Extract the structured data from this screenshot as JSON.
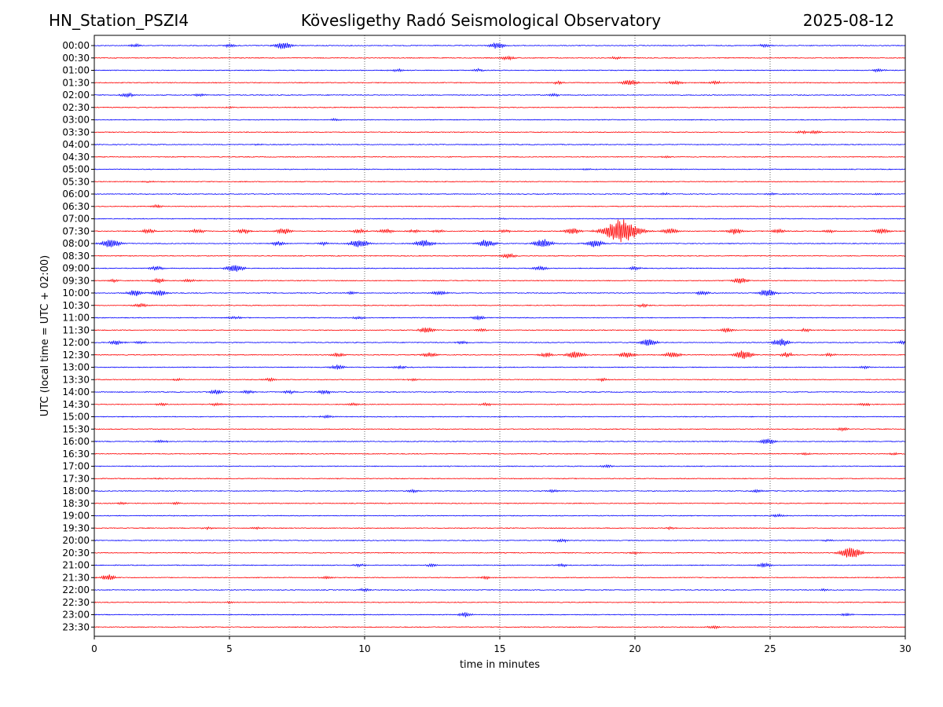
{
  "header": {
    "station": "HN_Station_PSZI4",
    "observatory": "Kövesligethy Radó Seismological Observatory",
    "date": "2025-08-12"
  },
  "chart_data": {
    "type": "line",
    "title": "Kövesligethy Radó Seismological Observatory",
    "xlabel": "time in minutes",
    "ylabel": "UTC (local time = UTC + 02:00)",
    "xlim": [
      0,
      30
    ],
    "x_ticks": [
      "0",
      "5",
      "10",
      "15",
      "20",
      "25",
      "30"
    ],
    "vertical_grid_minutes": [
      5,
      10,
      15,
      20,
      25
    ],
    "grid": "vertical-dotted",
    "colors": {
      "even": "#0000ff",
      "odd": "#ff0000"
    },
    "series": [
      {
        "name": "00:00",
        "color": "#0000ff",
        "events": [
          [
            1.5,
            2
          ],
          [
            5.0,
            2
          ],
          [
            7.0,
            5
          ],
          [
            14.9,
            4
          ],
          [
            24.8,
            2
          ]
        ]
      },
      {
        "name": "00:30",
        "color": "#ff0000",
        "events": [
          [
            15.3,
            3
          ],
          [
            19.3,
            1.5
          ]
        ]
      },
      {
        "name": "01:00",
        "color": "#0000ff",
        "events": [
          [
            11.2,
            2
          ],
          [
            14.2,
            2
          ],
          [
            29.0,
            2
          ]
        ]
      },
      {
        "name": "01:30",
        "color": "#ff0000",
        "events": [
          [
            17.2,
            2
          ],
          [
            19.8,
            4
          ],
          [
            21.5,
            3
          ],
          [
            23.0,
            2
          ]
        ]
      },
      {
        "name": "02:00",
        "color": "#0000ff",
        "events": [
          [
            1.2,
            3
          ],
          [
            3.9,
            2
          ],
          [
            17.0,
            2
          ]
        ]
      },
      {
        "name": "02:30",
        "color": "#ff0000",
        "events": [
          [
            5.0,
            1
          ]
        ]
      },
      {
        "name": "03:00",
        "color": "#0000ff",
        "events": [
          [
            8.9,
            1.5
          ]
        ]
      },
      {
        "name": "03:30",
        "color": "#ff0000",
        "events": [
          [
            26.2,
            2
          ],
          [
            26.7,
            2
          ]
        ]
      },
      {
        "name": "04:00",
        "color": "#0000ff",
        "events": [
          [
            6.0,
            1
          ]
        ]
      },
      {
        "name": "04:30",
        "color": "#ff0000",
        "events": [
          [
            21.2,
            1.5
          ]
        ]
      },
      {
        "name": "05:00",
        "color": "#0000ff",
        "events": [
          [
            18.2,
            1
          ]
        ]
      },
      {
        "name": "05:30",
        "color": "#ff0000",
        "events": [
          [
            2.0,
            1
          ]
        ]
      },
      {
        "name": "06:00",
        "color": "#0000ff",
        "events": [
          [
            21.1,
            1.5
          ],
          [
            25.0,
            1.5
          ],
          [
            29.0,
            1.5
          ]
        ]
      },
      {
        "name": "06:30",
        "color": "#ff0000",
        "events": [
          [
            2.3,
            2
          ]
        ]
      },
      {
        "name": "07:00",
        "color": "#0000ff",
        "events": [
          [
            15.0,
            1
          ]
        ]
      },
      {
        "name": "07:30",
        "color": "#ff0000",
        "events": [
          [
            2.0,
            3
          ],
          [
            3.8,
            3
          ],
          [
            5.5,
            3
          ],
          [
            7.0,
            4
          ],
          [
            9.8,
            3
          ],
          [
            10.8,
            3
          ],
          [
            11.8,
            2
          ],
          [
            12.7,
            2
          ],
          [
            15.2,
            2
          ],
          [
            17.7,
            4
          ],
          [
            19.5,
            16
          ],
          [
            21.3,
            4
          ],
          [
            23.7,
            4
          ],
          [
            25.3,
            3
          ],
          [
            27.2,
            2
          ],
          [
            29.1,
            4
          ]
        ]
      },
      {
        "name": "08:00",
        "color": "#0000ff",
        "events": [
          [
            0.6,
            6
          ],
          [
            6.8,
            3
          ],
          [
            8.5,
            2
          ],
          [
            9.8,
            6
          ],
          [
            12.2,
            5
          ],
          [
            14.5,
            5
          ],
          [
            16.6,
            6
          ],
          [
            18.5,
            5
          ]
        ]
      },
      {
        "name": "08:30",
        "color": "#ff0000",
        "events": [
          [
            15.3,
            3
          ]
        ]
      },
      {
        "name": "09:00",
        "color": "#0000ff",
        "events": [
          [
            2.3,
            3
          ],
          [
            5.2,
            5
          ],
          [
            16.5,
            3
          ],
          [
            20.0,
            2
          ]
        ]
      },
      {
        "name": "09:30",
        "color": "#ff0000",
        "events": [
          [
            0.7,
            2
          ],
          [
            2.4,
            3
          ],
          [
            3.5,
            2
          ],
          [
            23.9,
            4
          ]
        ]
      },
      {
        "name": "10:00",
        "color": "#0000ff",
        "events": [
          [
            1.5,
            4
          ],
          [
            2.4,
            4
          ],
          [
            9.5,
            2
          ],
          [
            12.8,
            3
          ],
          [
            22.5,
            3
          ],
          [
            24.9,
            5
          ]
        ]
      },
      {
        "name": "10:30",
        "color": "#ff0000",
        "events": [
          [
            1.7,
            3
          ],
          [
            20.3,
            2
          ]
        ]
      },
      {
        "name": "11:00",
        "color": "#0000ff",
        "events": [
          [
            5.2,
            2
          ],
          [
            9.8,
            2
          ],
          [
            14.2,
            3
          ]
        ]
      },
      {
        "name": "11:30",
        "color": "#ff0000",
        "events": [
          [
            12.3,
            4
          ],
          [
            14.3,
            2
          ],
          [
            23.4,
            3
          ],
          [
            26.3,
            2
          ]
        ]
      },
      {
        "name": "12:00",
        "color": "#0000ff",
        "events": [
          [
            0.8,
            3
          ],
          [
            1.7,
            2
          ],
          [
            13.6,
            2
          ],
          [
            20.5,
            5
          ],
          [
            25.4,
            5
          ],
          [
            30.0,
            3
          ]
        ]
      },
      {
        "name": "12:30",
        "color": "#ff0000",
        "events": [
          [
            9.0,
            3
          ],
          [
            12.4,
            3
          ],
          [
            16.7,
            3
          ],
          [
            17.8,
            5
          ],
          [
            19.7,
            4
          ],
          [
            21.4,
            4
          ],
          [
            24.0,
            6
          ],
          [
            25.6,
            3
          ],
          [
            27.2,
            2
          ]
        ]
      },
      {
        "name": "13:00",
        "color": "#0000ff",
        "events": [
          [
            9.0,
            3
          ],
          [
            11.3,
            2
          ],
          [
            28.5,
            2
          ]
        ]
      },
      {
        "name": "13:30",
        "color": "#ff0000",
        "events": [
          [
            3.1,
            1.5
          ],
          [
            6.5,
            2
          ],
          [
            11.8,
            1.5
          ],
          [
            18.8,
            2
          ]
        ]
      },
      {
        "name": "14:00",
        "color": "#0000ff",
        "events": [
          [
            4.5,
            3
          ],
          [
            5.7,
            2
          ],
          [
            7.2,
            2
          ],
          [
            8.5,
            3
          ]
        ]
      },
      {
        "name": "14:30",
        "color": "#ff0000",
        "events": [
          [
            2.5,
            2
          ],
          [
            4.5,
            2
          ],
          [
            9.6,
            2
          ],
          [
            14.5,
            2
          ],
          [
            28.5,
            2
          ]
        ]
      },
      {
        "name": "15:00",
        "color": "#0000ff",
        "events": [
          [
            8.6,
            2
          ]
        ]
      },
      {
        "name": "15:30",
        "color": "#ff0000",
        "events": [
          [
            27.7,
            2
          ]
        ]
      },
      {
        "name": "16:00",
        "color": "#0000ff",
        "events": [
          [
            2.5,
            2
          ],
          [
            24.9,
            4
          ]
        ]
      },
      {
        "name": "16:30",
        "color": "#ff0000",
        "events": [
          [
            26.3,
            1.5
          ],
          [
            29.6,
            1.5
          ]
        ]
      },
      {
        "name": "17:00",
        "color": "#0000ff",
        "events": [
          [
            19.0,
            2
          ]
        ]
      },
      {
        "name": "17:30",
        "color": "#ff0000",
        "events": [
          [
            2.4,
            1
          ]
        ]
      },
      {
        "name": "18:00",
        "color": "#0000ff",
        "events": [
          [
            11.8,
            2
          ],
          [
            17.0,
            2
          ],
          [
            24.5,
            2
          ]
        ]
      },
      {
        "name": "18:30",
        "color": "#ff0000",
        "events": [
          [
            1.0,
            1.5
          ],
          [
            3.0,
            1.5
          ]
        ]
      },
      {
        "name": "19:00",
        "color": "#0000ff",
        "events": [
          [
            25.3,
            2
          ]
        ]
      },
      {
        "name": "19:30",
        "color": "#ff0000",
        "events": [
          [
            4.2,
            1.5
          ],
          [
            6.0,
            1.5
          ],
          [
            21.3,
            1.5
          ]
        ]
      },
      {
        "name": "20:00",
        "color": "#0000ff",
        "events": [
          [
            17.3,
            2.5
          ],
          [
            27.2,
            1.5
          ]
        ]
      },
      {
        "name": "20:30",
        "color": "#ff0000",
        "events": [
          [
            28.0,
            8
          ],
          [
            20.0,
            1.5
          ]
        ]
      },
      {
        "name": "21:00",
        "color": "#0000ff",
        "events": [
          [
            9.8,
            2
          ],
          [
            12.5,
            2
          ],
          [
            17.3,
            2
          ],
          [
            24.8,
            3
          ]
        ]
      },
      {
        "name": "21:30",
        "color": "#ff0000",
        "events": [
          [
            0.5,
            4
          ],
          [
            8.6,
            2
          ],
          [
            14.5,
            2
          ]
        ]
      },
      {
        "name": "22:00",
        "color": "#0000ff",
        "events": [
          [
            10.0,
            2
          ],
          [
            27.0,
            1.5
          ]
        ]
      },
      {
        "name": "22:30",
        "color": "#ff0000",
        "events": [
          [
            5.0,
            1
          ]
        ]
      },
      {
        "name": "23:00",
        "color": "#0000ff",
        "events": [
          [
            13.7,
            3
          ],
          [
            27.8,
            2
          ]
        ]
      },
      {
        "name": "23:30",
        "color": "#ff0000",
        "events": [
          [
            22.9,
            2
          ]
        ]
      }
    ]
  }
}
